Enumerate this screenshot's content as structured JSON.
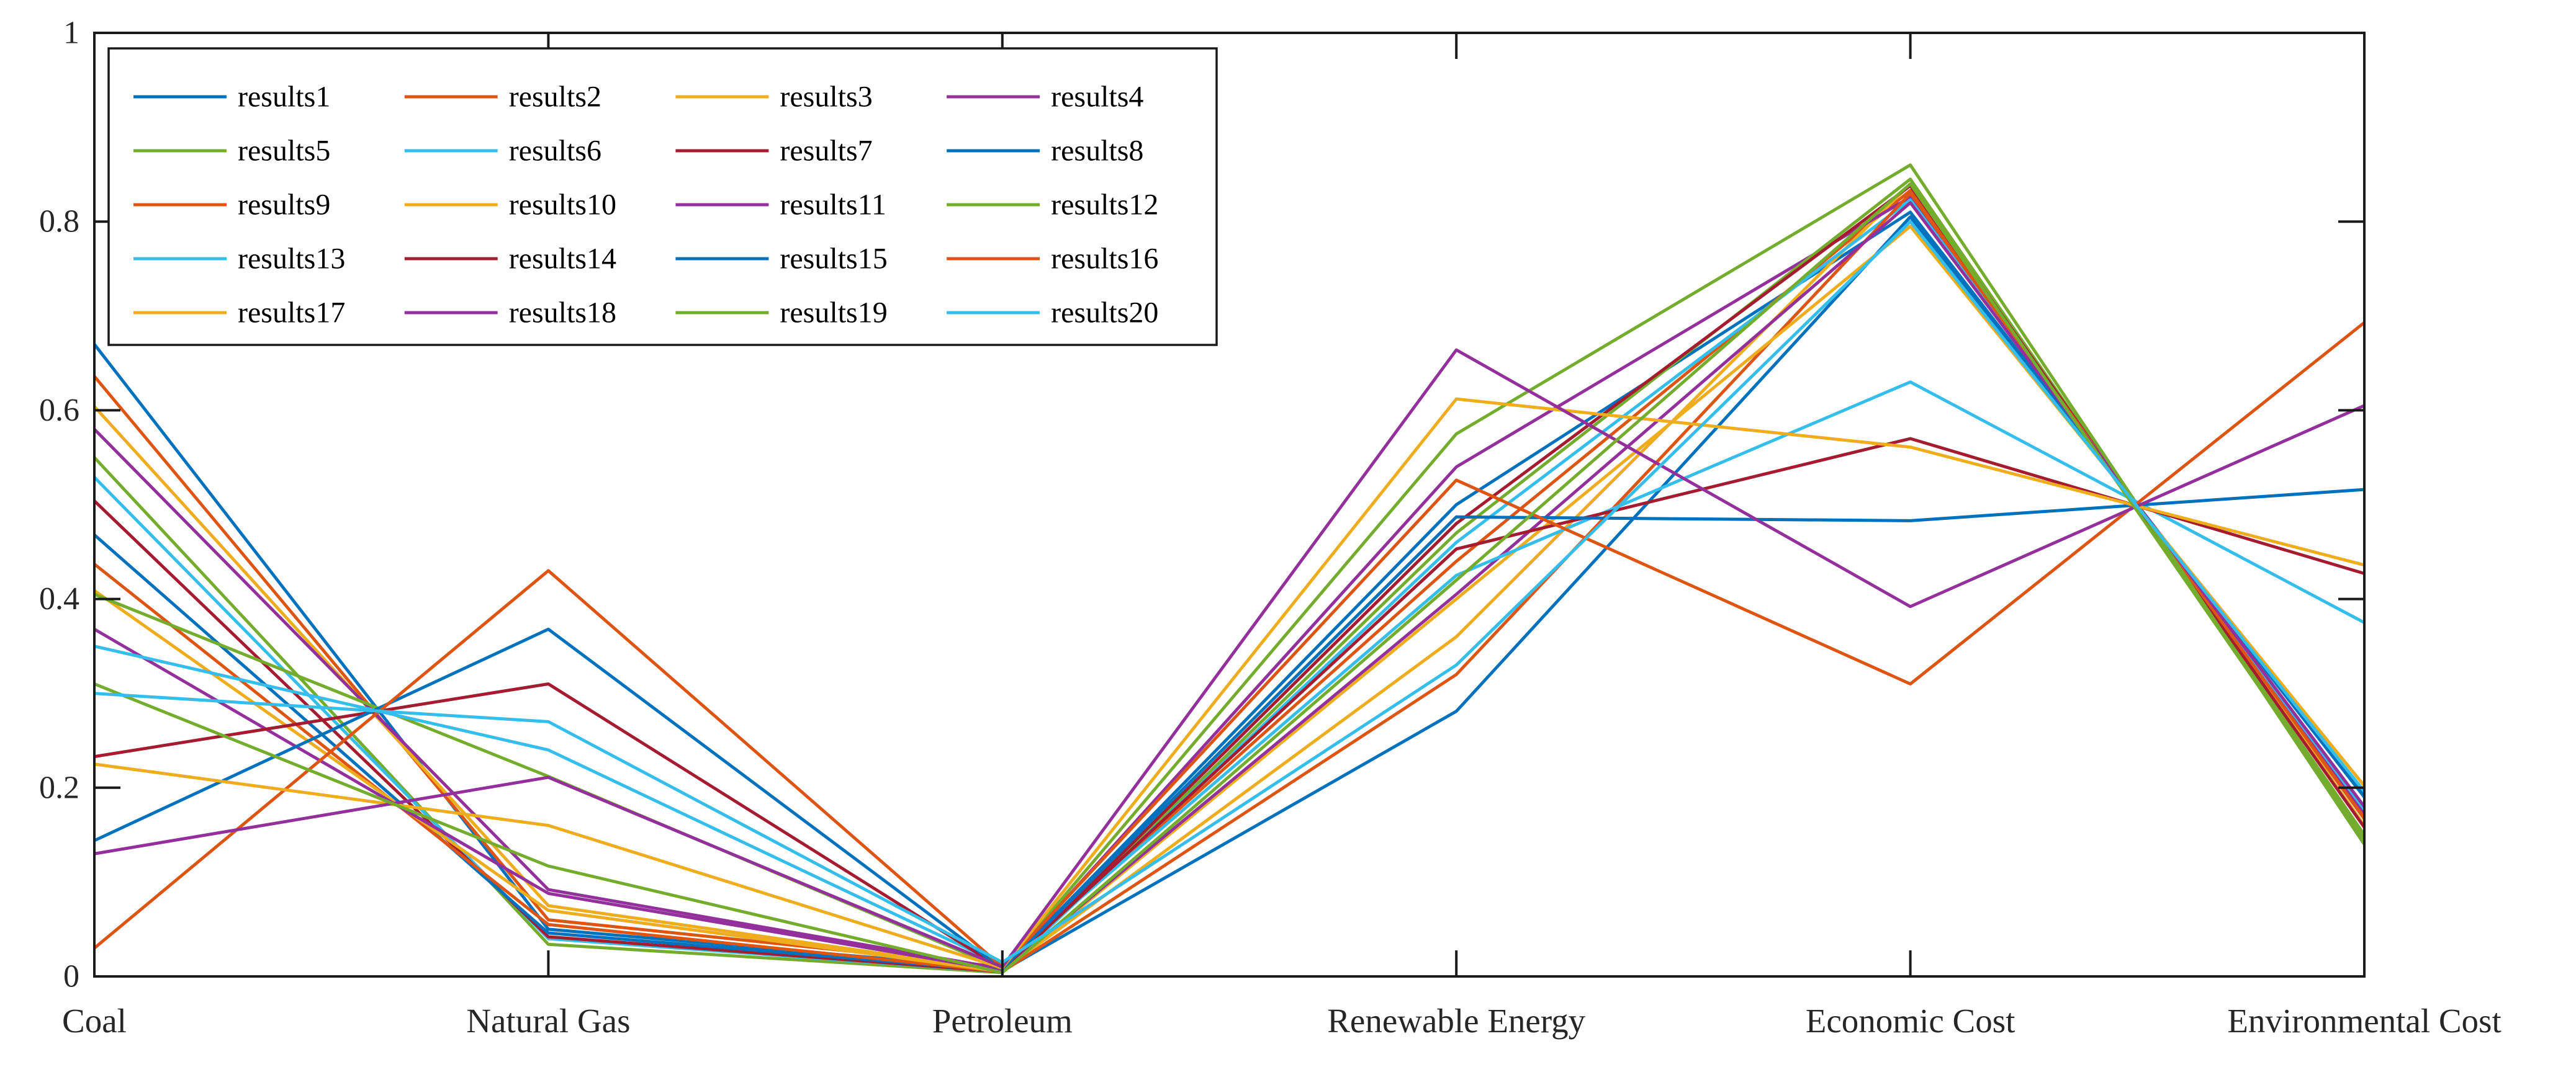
{
  "figure": {
    "background": "#ffffff",
    "axis_color": "#1a1a1a",
    "label_color": "#262626",
    "legend_text_color": "#000000"
  },
  "chart_data": {
    "type": "line",
    "variant": "parallel-coordinates",
    "title": "",
    "xlabel": "",
    "ylabel": "",
    "categories": [
      "Coal",
      "Natural Gas",
      "Petroleum",
      "Renewable Energy",
      "Economic Cost",
      "Environmental Cost"
    ],
    "ylim": [
      0,
      1
    ],
    "yticks": [
      0,
      0.2,
      0.4,
      0.6,
      0.8,
      1
    ],
    "ytick_labels": [
      "0",
      "0.2",
      "0.4",
      "0.6",
      "0.8",
      "1"
    ],
    "grid": "off",
    "legend": {
      "position": "top-left",
      "columns": 4,
      "rows": 5,
      "border_color": "#1a1a1a",
      "background": "#ffffff"
    },
    "palette": [
      "#0072BD",
      "#DE5511",
      "#EFAC1C",
      "#94309C",
      "#74AC2E",
      "#35BDEC",
      "#A51C30"
    ],
    "series": [
      {
        "name": "results1",
        "color": "#0072BD",
        "values": [
          0.67,
          0.05,
          0.008,
          0.5,
          0.81,
          0.19
        ]
      },
      {
        "name": "results2",
        "color": "#DE5511",
        "values": [
          0.636,
          0.06,
          0.01,
          0.44,
          0.833,
          0.167
        ]
      },
      {
        "name": "results3",
        "color": "#EFAC1C",
        "values": [
          0.604,
          0.075,
          0.006,
          0.36,
          0.84,
          0.16
        ]
      },
      {
        "name": "results4",
        "color": "#94309C",
        "values": [
          0.58,
          0.092,
          0.008,
          0.54,
          0.826,
          0.172
        ]
      },
      {
        "name": "results5",
        "color": "#74AC2E",
        "values": [
          0.55,
          0.034,
          0.004,
          0.47,
          0.845,
          0.15
        ]
      },
      {
        "name": "results6",
        "color": "#35BDEC",
        "values": [
          0.529,
          0.04,
          0.005,
          0.46,
          0.823,
          0.177
        ]
      },
      {
        "name": "results7",
        "color": "#A51C30",
        "values": [
          0.504,
          0.042,
          0.005,
          0.48,
          0.838,
          0.158
        ]
      },
      {
        "name": "results8",
        "color": "#0072BD",
        "values": [
          0.468,
          0.046,
          0.006,
          0.281,
          0.805,
          0.191
        ]
      },
      {
        "name": "results9",
        "color": "#DE5511",
        "values": [
          0.437,
          0.055,
          0.005,
          0.32,
          0.83,
          0.168
        ]
      },
      {
        "name": "results10",
        "color": "#EFAC1C",
        "values": [
          0.409,
          0.07,
          0.005,
          0.4,
          0.795,
          0.202
        ]
      },
      {
        "name": "results11",
        "color": "#94309C",
        "values": [
          0.368,
          0.088,
          0.006,
          0.405,
          0.82,
          0.18
        ]
      },
      {
        "name": "results12",
        "color": "#74AC2E",
        "values": [
          0.405,
          0.212,
          0.008,
          0.575,
          0.86,
          0.14
        ]
      },
      {
        "name": "results13",
        "color": "#35BDEC",
        "values": [
          0.35,
          0.24,
          0.012,
          0.425,
          0.63,
          0.375
        ]
      },
      {
        "name": "results14",
        "color": "#A51C30",
        "values": [
          0.233,
          0.31,
          0.008,
          0.453,
          0.57,
          0.427
        ]
      },
      {
        "name": "results15",
        "color": "#0072BD",
        "values": [
          0.144,
          0.368,
          0.008,
          0.487,
          0.483,
          0.516
        ]
      },
      {
        "name": "results16",
        "color": "#DE5511",
        "values": [
          0.03,
          0.43,
          0.01,
          0.526,
          0.31,
          0.693
        ]
      },
      {
        "name": "results17",
        "color": "#EFAC1C",
        "values": [
          0.225,
          0.16,
          0.009,
          0.612,
          0.561,
          0.436
        ]
      },
      {
        "name": "results18",
        "color": "#94309C",
        "values": [
          0.13,
          0.211,
          0.01,
          0.664,
          0.392,
          0.605
        ]
      },
      {
        "name": "results19",
        "color": "#74AC2E",
        "values": [
          0.31,
          0.117,
          0.004,
          0.42,
          0.84,
          0.146
        ]
      },
      {
        "name": "results20",
        "color": "#35BDEC",
        "values": [
          0.3,
          0.27,
          0.015,
          0.33,
          0.8,
          0.196
        ]
      }
    ]
  }
}
